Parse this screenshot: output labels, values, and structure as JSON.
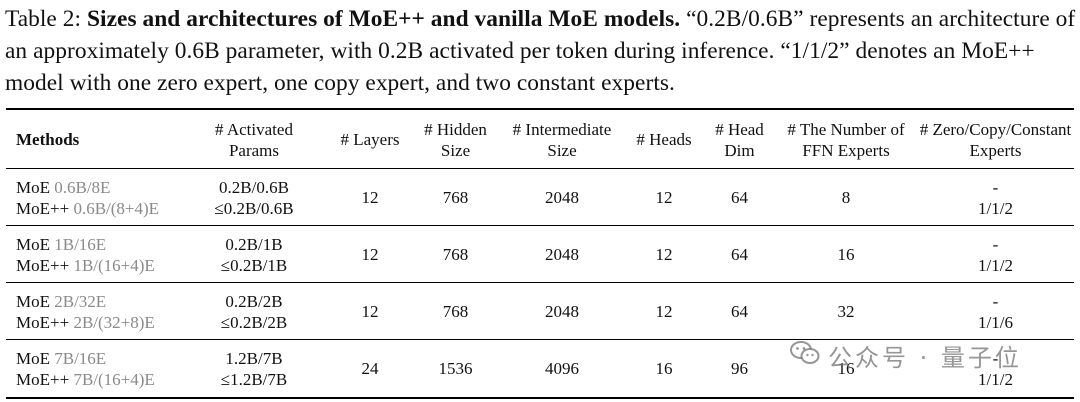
{
  "caption": {
    "label": "Table 2:",
    "bold": "Sizes and architectures of MoE++ and vanilla MoE models.",
    "rest": "“0.2B/0.6B” represents an architecture of an approximately 0.6B parameter, with 0.2B activated per token during inference. “1/1/2” denotes an MoE++ model with one zero expert, one copy expert, and two constant experts."
  },
  "table": {
    "headers": {
      "methods": "Methods",
      "activated": [
        "# Activated",
        "Params"
      ],
      "layers": "# Layers",
      "hidden": [
        "# Hidden",
        "Size"
      ],
      "intermediate": [
        "# Intermediate",
        "Size"
      ],
      "heads": "# Heads",
      "head_dim": [
        "# Head",
        "Dim"
      ],
      "ffn_experts": [
        "# The Number of",
        "FFN Experts"
      ],
      "zcc": [
        "# Zero/Copy/Constant",
        "Experts"
      ]
    },
    "rows": [
      {
        "moe_name": "MoE",
        "moe_cfg": "0.6B/8E",
        "pp_name": "MoE++",
        "pp_cfg": "0.6B/(8+4)E",
        "act_moe": "0.2B/0.6B",
        "act_pp": "≤0.2B/0.6B",
        "layers": "12",
        "hidden": "768",
        "intermediate": "2048",
        "heads": "12",
        "head_dim": "64",
        "ffn": "8",
        "zcc_moe": "-",
        "zcc_pp": "1/1/2"
      },
      {
        "moe_name": "MoE",
        "moe_cfg": "1B/16E",
        "pp_name": "MoE++",
        "pp_cfg": "1B/(16+4)E",
        "act_moe": "0.2B/1B",
        "act_pp": "≤0.2B/1B",
        "layers": "12",
        "hidden": "768",
        "intermediate": "2048",
        "heads": "12",
        "head_dim": "64",
        "ffn": "16",
        "zcc_moe": "-",
        "zcc_pp": "1/1/2"
      },
      {
        "moe_name": "MoE",
        "moe_cfg": "2B/32E",
        "pp_name": "MoE++",
        "pp_cfg": "2B/(32+8)E",
        "act_moe": "0.2B/2B",
        "act_pp": "≤0.2B/2B",
        "layers": "12",
        "hidden": "768",
        "intermediate": "2048",
        "heads": "12",
        "head_dim": "64",
        "ffn": "32",
        "zcc_moe": "-",
        "zcc_pp": "1/1/6"
      },
      {
        "moe_name": "MoE",
        "moe_cfg": "7B/16E",
        "pp_name": "MoE++",
        "pp_cfg": "7B/(16+4)E",
        "act_moe": "1.2B/7B",
        "act_pp": "≤1.2B/7B",
        "layers": "24",
        "hidden": "1536",
        "intermediate": "4096",
        "heads": "16",
        "head_dim": "96",
        "ffn": "16",
        "zcc_moe": "-",
        "zcc_pp": "1/1/2"
      }
    ]
  },
  "watermark": {
    "icon": "wechat-icon",
    "text": "公众号 · 量子位"
  }
}
